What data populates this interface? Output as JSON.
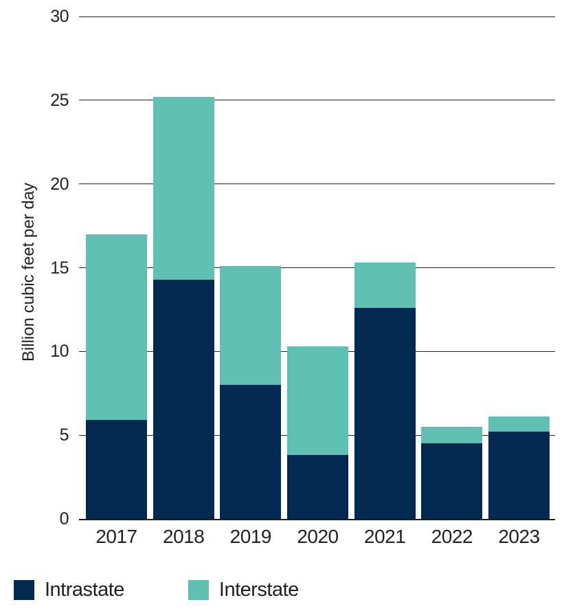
{
  "chart_data": {
    "type": "bar",
    "stacked": true,
    "title": "",
    "xlabel": "",
    "ylabel": "Billion cubic feet per day",
    "categories": [
      "2017",
      "2018",
      "2019",
      "2020",
      "2021",
      "2022",
      "2023"
    ],
    "series": [
      {
        "name": "Intrastate",
        "color": "#022a51",
        "values": [
          5.9,
          14.3,
          8.0,
          3.8,
          12.6,
          4.5,
          5.2
        ]
      },
      {
        "name": "Interstate",
        "color": "#5fbfb2",
        "values": [
          11.1,
          10.9,
          7.1,
          6.5,
          2.7,
          1.0,
          0.9
        ]
      }
    ],
    "totals": [
      17.0,
      25.2,
      15.1,
      10.3,
      15.3,
      5.5,
      6.1
    ],
    "ylim": [
      0,
      30
    ],
    "yticks": [
      0,
      5,
      10,
      15,
      20,
      25,
      30
    ],
    "grid": true,
    "legend_position": "bottom",
    "text_color": "#231f20",
    "axis_color": "#1a1a1a",
    "background_color": "#ffffff"
  }
}
